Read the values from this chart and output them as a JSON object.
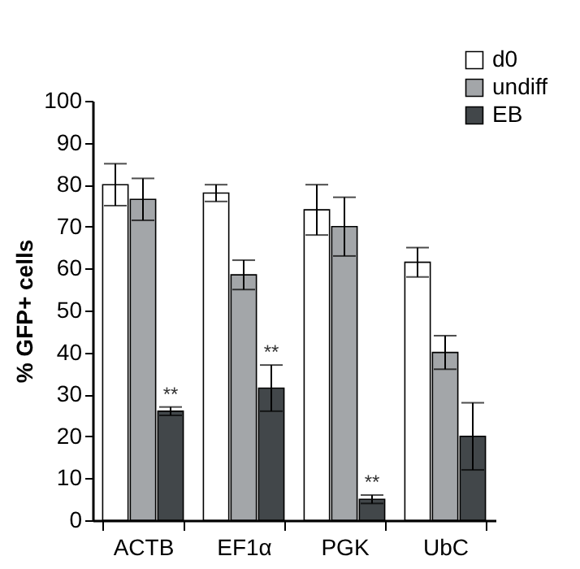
{
  "chart_data": {
    "type": "bar",
    "ylabel": "% GFP+ cells",
    "categories": [
      "ACTB",
      "EF1α",
      "PGK",
      "UbC"
    ],
    "series": [
      {
        "name": "d0",
        "color": "#ffffff",
        "values": [
          80,
          78,
          74,
          61.5
        ],
        "errors": [
          5,
          2,
          6,
          3.5
        ]
      },
      {
        "name": "undiff",
        "color": "#a3a6a9",
        "values": [
          76.5,
          58.5,
          70,
          40
        ],
        "errors": [
          5,
          3.5,
          7,
          4
        ]
      },
      {
        "name": "EB",
        "color": "#42474a",
        "values": [
          26,
          31.5,
          5,
          20
        ],
        "errors": [
          1,
          5.5,
          1,
          8
        ]
      }
    ],
    "annotations": [
      "**",
      "**",
      "**"
    ],
    "ylim": [
      0,
      100
    ],
    "yticks": [
      0,
      10,
      20,
      30,
      40,
      50,
      60,
      70,
      80,
      90,
      100
    ],
    "grid": false,
    "legend": "top right"
  }
}
